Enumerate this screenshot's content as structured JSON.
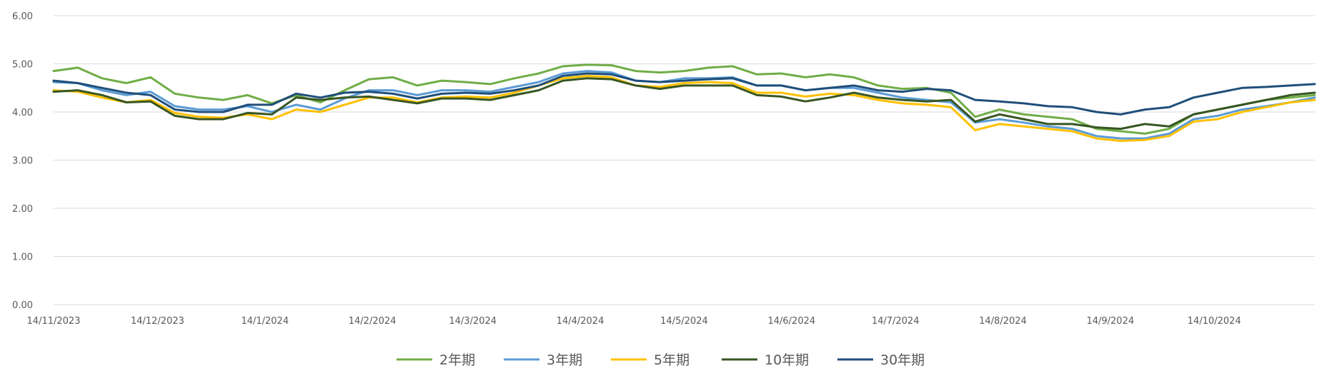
{
  "chart_data": {
    "type": "line",
    "title": "",
    "xlabel": "",
    "ylabel": "",
    "ylim": [
      0,
      6
    ],
    "yticks": [
      "0.00",
      "1.00",
      "2.00",
      "3.00",
      "4.00",
      "5.00",
      "6.00"
    ],
    "grid": "horizontal",
    "legend_position": "bottom",
    "x_tick_labels": [
      "14/11/2023",
      "14/12/2023",
      "14/1/2024",
      "14/2/2024",
      "14/3/2024",
      "14/4/2024",
      "14/5/2024",
      "14/6/2024",
      "14/7/2024",
      "14/8/2024",
      "14/9/2024",
      "14/10/2024"
    ],
    "x": [
      "2023-11-14",
      "2023-11-21",
      "2023-11-28",
      "2023-12-05",
      "2023-12-12",
      "2023-12-19",
      "2023-12-26",
      "2024-01-02",
      "2024-01-09",
      "2024-01-16",
      "2024-01-23",
      "2024-01-30",
      "2024-02-06",
      "2024-02-13",
      "2024-02-20",
      "2024-02-27",
      "2024-03-05",
      "2024-03-12",
      "2024-03-19",
      "2024-03-26",
      "2024-04-02",
      "2024-04-09",
      "2024-04-16",
      "2024-04-23",
      "2024-04-30",
      "2024-05-07",
      "2024-05-14",
      "2024-05-21",
      "2024-05-28",
      "2024-06-04",
      "2024-06-11",
      "2024-06-18",
      "2024-06-25",
      "2024-07-02",
      "2024-07-09",
      "2024-07-16",
      "2024-07-23",
      "2024-07-30",
      "2024-08-06",
      "2024-08-13",
      "2024-08-20",
      "2024-08-27",
      "2024-09-03",
      "2024-09-10",
      "2024-09-17",
      "2024-09-24",
      "2024-10-01",
      "2024-10-08",
      "2024-10-15",
      "2024-10-22",
      "2024-10-29",
      "2024-11-05",
      "2024-11-12"
    ],
    "series": [
      {
        "name": "2年期",
        "color": "#70ad47",
        "values": [
          4.85,
          4.92,
          4.7,
          4.6,
          4.72,
          4.38,
          4.3,
          4.25,
          4.35,
          4.18,
          4.35,
          4.2,
          4.45,
          4.68,
          4.72,
          4.55,
          4.65,
          4.62,
          4.58,
          4.7,
          4.8,
          4.95,
          4.98,
          4.97,
          4.85,
          4.82,
          4.85,
          4.92,
          4.95,
          4.78,
          4.8,
          4.72,
          4.78,
          4.72,
          4.55,
          4.48,
          4.5,
          4.4,
          3.9,
          4.05,
          3.95,
          3.9,
          3.85,
          3.65,
          3.6,
          3.55,
          3.65,
          3.95,
          4.05,
          4.15,
          4.25,
          4.3,
          4.35
        ]
      },
      {
        "name": "3年期",
        "color": "#5b9bd5",
        "values": [
          4.62,
          4.6,
          4.45,
          4.35,
          4.42,
          4.12,
          4.05,
          4.05,
          4.12,
          4.0,
          4.15,
          4.05,
          4.28,
          4.45,
          4.45,
          4.35,
          4.45,
          4.45,
          4.42,
          4.52,
          4.62,
          4.8,
          4.85,
          4.82,
          4.65,
          4.62,
          4.7,
          4.7,
          4.72,
          4.55,
          4.55,
          4.45,
          4.5,
          4.5,
          4.4,
          4.3,
          4.25,
          4.2,
          3.78,
          3.85,
          3.78,
          3.7,
          3.65,
          3.5,
          3.45,
          3.45,
          3.55,
          3.85,
          3.92,
          4.05,
          4.12,
          4.2,
          4.3
        ]
      },
      {
        "name": "5年期",
        "color": "#ffc000",
        "values": [
          4.45,
          4.42,
          4.3,
          4.2,
          4.25,
          3.98,
          3.9,
          3.88,
          3.95,
          3.85,
          4.05,
          4.0,
          4.15,
          4.3,
          4.3,
          4.2,
          4.3,
          4.32,
          4.3,
          4.4,
          4.55,
          4.7,
          4.75,
          4.72,
          4.55,
          4.52,
          4.6,
          4.62,
          4.6,
          4.4,
          4.4,
          4.32,
          4.38,
          4.35,
          4.25,
          4.18,
          4.15,
          4.1,
          3.62,
          3.75,
          3.7,
          3.65,
          3.6,
          3.45,
          3.4,
          3.42,
          3.5,
          3.8,
          3.85,
          4.0,
          4.1,
          4.2,
          4.25
        ]
      },
      {
        "name": "10年期",
        "color": "#375623",
        "values": [
          4.42,
          4.45,
          4.35,
          4.2,
          4.22,
          3.92,
          3.85,
          3.85,
          3.98,
          3.95,
          4.3,
          4.25,
          4.3,
          4.32,
          4.25,
          4.18,
          4.28,
          4.28,
          4.25,
          4.35,
          4.45,
          4.65,
          4.7,
          4.68,
          4.55,
          4.48,
          4.55,
          4.55,
          4.55,
          4.35,
          4.32,
          4.22,
          4.3,
          4.4,
          4.3,
          4.25,
          4.22,
          4.25,
          3.8,
          3.95,
          3.85,
          3.75,
          3.75,
          3.68,
          3.65,
          3.75,
          3.7,
          3.95,
          4.05,
          4.15,
          4.25,
          4.35,
          4.4
        ]
      },
      {
        "name": "30年期",
        "color": "#1f4e79",
        "values": [
          4.65,
          4.6,
          4.5,
          4.4,
          4.35,
          4.05,
          4.0,
          4.0,
          4.15,
          4.15,
          4.38,
          4.3,
          4.4,
          4.42,
          4.38,
          4.28,
          4.38,
          4.4,
          4.38,
          4.45,
          4.55,
          4.75,
          4.8,
          4.78,
          4.65,
          4.62,
          4.65,
          4.68,
          4.7,
          4.55,
          4.55,
          4.45,
          4.5,
          4.55,
          4.45,
          4.42,
          4.48,
          4.45,
          4.25,
          4.22,
          4.18,
          4.12,
          4.1,
          4.0,
          3.95,
          4.05,
          4.1,
          4.3,
          4.4,
          4.5,
          4.52,
          4.55,
          4.58
        ]
      }
    ]
  }
}
